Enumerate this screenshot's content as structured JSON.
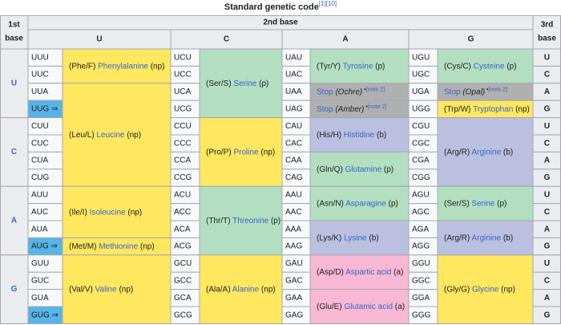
{
  "caption": {
    "title": "Standard genetic code",
    "refs": "[1][10]"
  },
  "headers": {
    "first_base_1": "1st",
    "first_base_2": "base",
    "second_base": "2nd base",
    "third_base_1": "3rd",
    "third_base_2": "base",
    "bases": [
      "U",
      "C",
      "A",
      "G"
    ]
  },
  "third_bases": [
    "U",
    "C",
    "A",
    "G"
  ],
  "colors": {
    "nonpolar": "#ffe75f",
    "polar": "#b3dec0",
    "basic": "#bbbfe0",
    "acidic": "#f8b7d3",
    "stop": "#b0b0b0",
    "start": "#56b4e9",
    "header": "#eaecf0",
    "codon": "#f8f9fa",
    "link": "#3366cc"
  },
  "blocks": [
    {
      "first": "U",
      "columns": [
        {
          "codons": [
            "UUU",
            "UUC",
            "UUA",
            "UUG ⇒"
          ],
          "start_rows": [
            3
          ],
          "groups": [
            {
              "rows": 2,
              "pre": "(Phe/F) ",
              "link": "Phenylalanine",
              "post": " (np)",
              "cat": "nonpolar"
            },
            {
              "rows": 2,
              "pre": "",
              "link": "",
              "post": "",
              "cat": "nonpolar"
            }
          ]
        },
        {
          "codons": [
            "UCU",
            "UCC",
            "UCA",
            "UCG"
          ],
          "start_rows": [],
          "groups": [
            {
              "rows": 4,
              "pre": "(Ser/S) ",
              "link": "Serine",
              "post": " (p)",
              "cat": "polar"
            }
          ]
        },
        {
          "codons": [
            "UAU",
            "UAC",
            "UAA",
            "UAG"
          ],
          "start_rows": [],
          "groups": [
            {
              "rows": 2,
              "pre": "(Tyr/Y) ",
              "link": "Tyrosine",
              "post": " (p)",
              "cat": "polar"
            },
            {
              "rows": 1,
              "pre": "",
              "link": "Stop",
              "post": "",
              "stop_name": "Ochre",
              "note": "[note 2]",
              "cat": "stop"
            },
            {
              "rows": 1,
              "pre": "",
              "link": "Stop",
              "post": "",
              "stop_name": "Amber",
              "note": "[note 2]",
              "cat": "stop"
            }
          ]
        },
        {
          "codons": [
            "UGU",
            "UGC",
            "UGA",
            "UGG"
          ],
          "start_rows": [],
          "groups": [
            {
              "rows": 2,
              "pre": "(Cys/C) ",
              "link": "Cysteine",
              "post": " (p)",
              "cat": "polar"
            },
            {
              "rows": 1,
              "pre": "",
              "link": "Stop",
              "post": "",
              "stop_name": "Opal",
              "note": "[note 2]",
              "cat": "stop"
            },
            {
              "rows": 1,
              "pre": "(Trp/W) ",
              "link": "Tryptophan",
              "post": " (np)",
              "cat": "nonpolar"
            }
          ]
        }
      ]
    },
    {
      "first": "C",
      "columns": [
        {
          "codons": [
            "CUU",
            "CUC",
            "CUA",
            "CUG"
          ],
          "start_rows": [],
          "groups": [
            {
              "rows": 4,
              "pre": "",
              "link": "",
              "post": "",
              "cat": "nonpolar"
            }
          ]
        },
        {
          "codons": [
            "CCU",
            "CCC",
            "CCA",
            "CCG"
          ],
          "start_rows": [],
          "groups": [
            {
              "rows": 4,
              "pre": "(Pro/P) ",
              "link": "Proline",
              "post": " (np)",
              "cat": "nonpolar"
            }
          ]
        },
        {
          "codons": [
            "CAU",
            "CAC",
            "CAA",
            "CAG"
          ],
          "start_rows": [],
          "groups": [
            {
              "rows": 2,
              "pre": "(His/H) ",
              "link": "Histidine",
              "post": " (b)",
              "cat": "basic"
            },
            {
              "rows": 2,
              "pre": "(Gln/Q) ",
              "link": "Glutamine",
              "post": " (p)",
              "cat": "polar"
            }
          ]
        },
        {
          "codons": [
            "CGU",
            "CGC",
            "CGA",
            "CGG"
          ],
          "start_rows": [],
          "groups": [
            {
              "rows": 4,
              "pre": "(Arg/R) ",
              "link": "Arginine",
              "post": " (b)",
              "cat": "basic"
            }
          ]
        }
      ]
    },
    {
      "first": "A",
      "columns": [
        {
          "codons": [
            "AUU",
            "AUC",
            "AUA",
            "AUG ⇒"
          ],
          "start_rows": [
            3
          ],
          "groups": [
            {
              "rows": 3,
              "pre": "(Ile/I) ",
              "link": "Isoleucine",
              "post": " (np)",
              "cat": "nonpolar"
            },
            {
              "rows": 1,
              "pre": "(Met/M) ",
              "link": "Methionine",
              "post": " (np)",
              "cat": "nonpolar"
            }
          ]
        },
        {
          "codons": [
            "ACU",
            "ACC",
            "ACA",
            "ACG"
          ],
          "start_rows": [],
          "groups": [
            {
              "rows": 4,
              "pre": "(Thr/T) ",
              "link": "Threonine",
              "post": " (p)",
              "cat": "polar"
            }
          ]
        },
        {
          "codons": [
            "AAU",
            "AAC",
            "AAA",
            "AAG"
          ],
          "start_rows": [],
          "groups": [
            {
              "rows": 2,
              "pre": "(Asn/N) ",
              "link": "Asparagine",
              "post": " (p)",
              "cat": "polar"
            },
            {
              "rows": 2,
              "pre": "(Lys/K) ",
              "link": "Lysine",
              "post": " (b)",
              "cat": "basic"
            }
          ]
        },
        {
          "codons": [
            "AGU",
            "AGC",
            "AGA",
            "AGG"
          ],
          "start_rows": [],
          "groups": [
            {
              "rows": 2,
              "pre": "(Ser/S) ",
              "link": "Serine",
              "post": " (p)",
              "cat": "polar"
            },
            {
              "rows": 2,
              "pre": "(Arg/R) ",
              "link": "Arginine",
              "post": " (b)",
              "cat": "basic"
            }
          ]
        }
      ]
    },
    {
      "first": "G",
      "columns": [
        {
          "codons": [
            "GUU",
            "GUC",
            "GUA",
            "GUG ⇒"
          ],
          "start_rows": [
            3
          ],
          "groups": [
            {
              "rows": 4,
              "pre": "(Val/V) ",
              "link": "Valine",
              "post": " (np)",
              "cat": "nonpolar"
            }
          ]
        },
        {
          "codons": [
            "GCU",
            "GCC",
            "GCA",
            "GCG"
          ],
          "start_rows": [],
          "groups": [
            {
              "rows": 4,
              "pre": "(Ala/A) ",
              "link": "Alanine",
              "post": " (np)",
              "cat": "nonpolar"
            }
          ]
        },
        {
          "codons": [
            "GAU",
            "GAC",
            "GAA",
            "GAG"
          ],
          "start_rows": [],
          "groups": [
            {
              "rows": 2,
              "pre": "(Asp/D) ",
              "link": "Aspartic acid",
              "post": " (a)",
              "cat": "acidic"
            },
            {
              "rows": 2,
              "pre": "(Glu/E) ",
              "link": "Glutamic acid",
              "post": " (a)",
              "cat": "acidic"
            }
          ]
        },
        {
          "codons": [
            "GGU",
            "GGC",
            "GGA",
            "GGG"
          ],
          "start_rows": [],
          "groups": [
            {
              "rows": 4,
              "pre": "(Gly/G) ",
              "link": "Glycine",
              "post": " (np)",
              "cat": "nonpolar"
            }
          ]
        }
      ]
    }
  ],
  "leucine": {
    "pre": "(Leu/L) ",
    "link": "Leucine",
    "post": " (np)"
  }
}
